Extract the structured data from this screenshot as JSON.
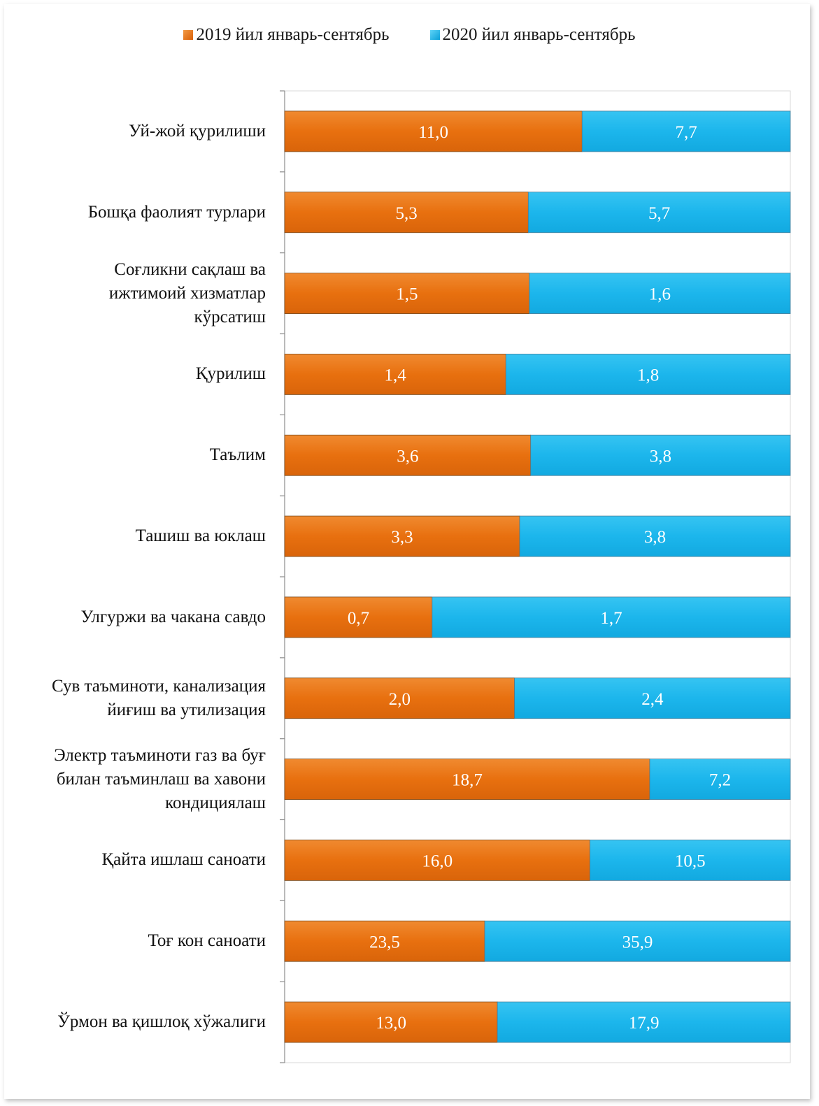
{
  "chart_data": {
    "type": "bar",
    "stacked": true,
    "orientation": "horizontal",
    "normalized": true,
    "legend": {
      "position": "top"
    },
    "categories": [
      "Уй-жой қурилиши",
      "Бошқа фаолият турлари",
      "Соғликни сақлаш ва ижтимоий хизматлар кўрсатиш",
      "Қурилиш",
      "Таълим",
      "Ташиш ва юклаш",
      "Улгуржи ва чакана савдо",
      "Сув таъминоти, канализация йиғиш ва утилизация",
      "Электр таъминоти газ ва буғ билан таъминлаш ва хавони кондициялаш",
      "Қайта ишлаш саноати",
      "Тоғ кон саноати",
      "Ўрмон ва қишлоқ хўжалиги"
    ],
    "category_lines": [
      [
        "Уй-жой қурилиши"
      ],
      [
        "Бошқа фаолият турлари"
      ],
      [
        "Соғликни сақлаш ва ",
        "ижтимоий хизматлар ",
        "кўрсатиш"
      ],
      [
        "Қурилиш"
      ],
      [
        "Таълим"
      ],
      [
        "Ташиш ва юклаш"
      ],
      [
        "Улгуржи ва чакана савдо"
      ],
      [
        "Сув таъминоти, канализация ",
        "йиғиш ва утилизация"
      ],
      [
        "Электр таъминоти газ ва буғ ",
        "билан таъминлаш ва хавони ",
        "кондициялаш"
      ],
      [
        "Қайта ишлаш саноати"
      ],
      [
        "Тоғ кон саноати"
      ],
      [
        "Ўрмон ва қишлоқ хўжалиги"
      ]
    ],
    "series": [
      {
        "name": "2019 йил январь-сентябрь",
        "color": "#e8700f",
        "values": [
          11.0,
          5.3,
          1.5,
          1.4,
          3.6,
          3.3,
          0.7,
          2.0,
          18.7,
          16.0,
          23.5,
          13.0
        ],
        "labels": [
          "11,0",
          "5,3",
          "1,5",
          "1,4",
          "3,6",
          "3,3",
          "0,7",
          "2,0",
          "18,7",
          "16,0",
          "23,5",
          "13,0"
        ]
      },
      {
        "name": "2020 йил январь-сентябрь",
        "color": "#1fb9ee",
        "values": [
          7.7,
          5.7,
          1.6,
          1.8,
          3.8,
          3.8,
          1.7,
          2.4,
          7.2,
          10.5,
          35.9,
          17.9
        ],
        "labels": [
          "7,7",
          "5,7",
          "1,6",
          "1,8",
          "3,8",
          "3,8",
          "1,7",
          "2,4",
          "7,2",
          "10,5",
          "35,9",
          "17,9"
        ]
      }
    ]
  }
}
